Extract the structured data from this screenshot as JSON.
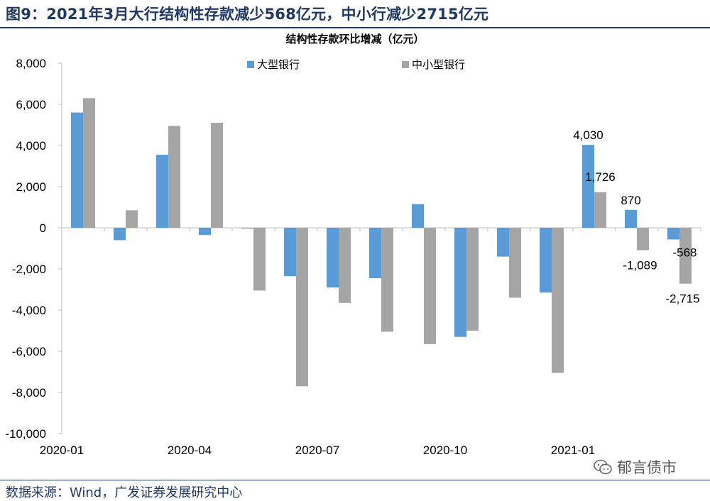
{
  "figure": {
    "title": "图9：2021年3月大行结构性存款减少568亿元，中小行减少2715亿元",
    "source": "数据来源：Wind，广发证券发展研究中心",
    "watermark": "郁言债市"
  },
  "colors": {
    "large": "#5b9bd5",
    "small": "#a5a5a5",
    "title": "#1f3864"
  },
  "chart_data": {
    "type": "bar",
    "title": "结构性存款环比增减（亿元）",
    "categories": [
      "2020-01",
      "2020-02",
      "2020-03",
      "2020-04",
      "2020-05",
      "2020-06",
      "2020-07",
      "2020-08",
      "2020-09",
      "2020-10",
      "2020-11",
      "2020-12",
      "2021-01",
      "2021-02",
      "2021-03"
    ],
    "x_tick_labels": [
      "2020-01",
      "",
      "",
      "2020-04",
      "",
      "",
      "2020-07",
      "",
      "",
      "2020-10",
      "",
      "",
      "2021-01",
      "",
      ""
    ],
    "series": [
      {
        "name": "大型银行",
        "values": [
          5600,
          -600,
          3550,
          -350,
          0,
          -2350,
          -2900,
          -2450,
          1150,
          -5300,
          -1400,
          -3150,
          4030,
          870,
          -568
        ]
      },
      {
        "name": "中小型银行",
        "values": [
          6300,
          850,
          4950,
          5100,
          -3050,
          -7700,
          -3650,
          -5050,
          -5650,
          -5000,
          -3400,
          -7050,
          1726,
          -1089,
          -2715
        ]
      }
    ],
    "data_labels": [
      {
        "series": 0,
        "index": 12,
        "text": "4,030"
      },
      {
        "series": 1,
        "index": 12,
        "text": "1,726"
      },
      {
        "series": 0,
        "index": 13,
        "text": "870"
      },
      {
        "series": 1,
        "index": 13,
        "text": "-1,089"
      },
      {
        "series": 0,
        "index": 14,
        "text": "-568"
      },
      {
        "series": 1,
        "index": 14,
        "text": "-2,715"
      }
    ],
    "ylim": [
      -10000,
      8000
    ],
    "y_ticks": [
      8000,
      6000,
      4000,
      2000,
      0,
      -2000,
      -4000,
      -6000,
      -8000,
      -10000
    ],
    "y_tick_labels": [
      "8,000",
      "6,000",
      "4,000",
      "2,000",
      "0",
      "-2,000",
      "-4,000",
      "-6,000",
      "-8,000",
      "-10,000"
    ],
    "grid": false,
    "legend_position": "top"
  }
}
